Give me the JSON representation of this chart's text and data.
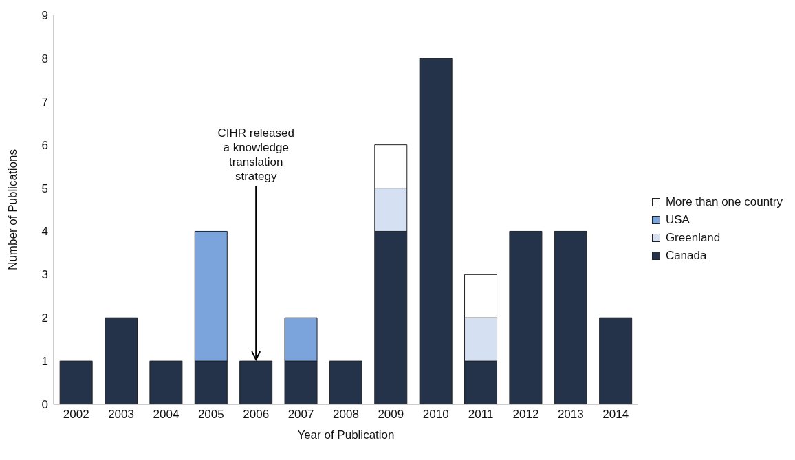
{
  "chart_data": {
    "type": "bar",
    "stacked": true,
    "xlabel": "Year of Publication",
    "ylabel": "Number of Publications",
    "categories": [
      "2002",
      "2003",
      "2004",
      "2005",
      "2006",
      "2007",
      "2008",
      "2009",
      "2010",
      "2011",
      "2012",
      "2013",
      "2014"
    ],
    "series": [
      {
        "name": "Canada",
        "color": "#24324a",
        "values": [
          1,
          2,
          1,
          1,
          1,
          1,
          1,
          4,
          8,
          1,
          4,
          4,
          2
        ]
      },
      {
        "name": "Greenland",
        "color": "#d6e0f3",
        "values": [
          null,
          null,
          null,
          null,
          null,
          null,
          null,
          1,
          null,
          1,
          null,
          null,
          null
        ]
      },
      {
        "name": "USA",
        "color": "#7ba3dc",
        "values": [
          null,
          null,
          null,
          3,
          null,
          1,
          null,
          null,
          null,
          null,
          null,
          null,
          null
        ]
      },
      {
        "name": "More than one country",
        "color": "#ffffff",
        "values": [
          null,
          null,
          null,
          null,
          null,
          null,
          null,
          1,
          null,
          1,
          null,
          null,
          null
        ]
      }
    ],
    "ylim": [
      0,
      9
    ],
    "yticks": [
      0,
      1,
      2,
      3,
      4,
      5,
      6,
      7,
      8,
      9
    ],
    "grid": false,
    "legend": "right",
    "annotations": [
      {
        "text": "CIHR released a knowledge translation strategy",
        "x": "2006",
        "y": 1
      }
    ]
  }
}
